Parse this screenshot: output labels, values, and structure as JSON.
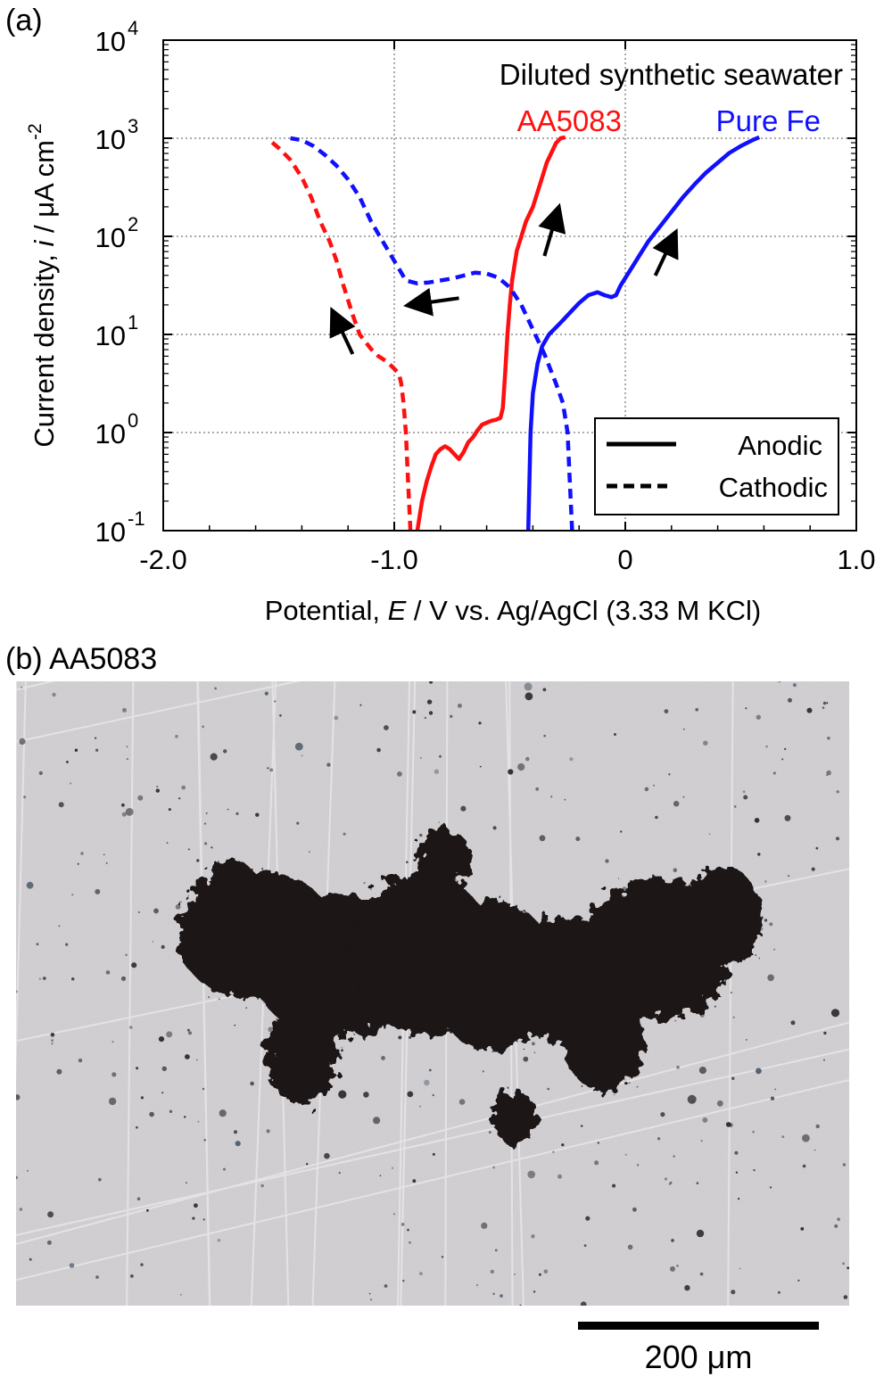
{
  "panel_a": {
    "label": "(a)"
  },
  "panel_b": {
    "label": "(b) AA5083"
  },
  "chart_data": {
    "type": "line",
    "title": "Diluted synthetic seawater",
    "xlabel": "Potential, E / V vs. Ag/AgCl (3.33 M KCl)",
    "ylabel": "Current density, i / μA cm^-2",
    "xlim": [
      -2.0,
      1.0
    ],
    "ylim_log10": [
      -1,
      4
    ],
    "yscale": "log",
    "grid": true,
    "x_ticks": [
      -2.0,
      -1.0,
      0.0,
      1.0
    ],
    "x_tick_labels": [
      "-2.0",
      "-1.0",
      "0",
      "1.0"
    ],
    "y_ticks": [
      -1,
      0,
      1,
      2,
      3,
      4
    ],
    "y_tick_mantissa": "10",
    "y_tick_exponents": [
      "-1",
      "0",
      "1",
      "2",
      "3",
      "4"
    ],
    "legend_position": "bottom-right",
    "legend": [
      {
        "label": "Anodic",
        "style": "solid"
      },
      {
        "label": "Cathodic",
        "style": "dashed"
      }
    ],
    "series_labels": [
      {
        "text": "AA5083",
        "color": "#ff1010"
      },
      {
        "text": "Pure Fe",
        "color": "#1010ff"
      }
    ],
    "series": [
      {
        "material": "AA5083",
        "branch": "Anodic",
        "color": "#ff1010",
        "style": "solid",
        "x": [
          -0.9,
          -0.88,
          -0.86,
          -0.84,
          -0.82,
          -0.8,
          -0.78,
          -0.76,
          -0.74,
          -0.72,
          -0.7,
          -0.68,
          -0.66,
          -0.64,
          -0.62,
          -0.6,
          -0.58,
          -0.56,
          -0.54,
          -0.53,
          -0.52,
          -0.51,
          -0.5,
          -0.49,
          -0.48,
          -0.47,
          -0.45,
          -0.43,
          -0.4,
          -0.38,
          -0.36,
          -0.34,
          -0.32,
          -0.3,
          -0.28,
          -0.26
        ],
        "log10_i": [
          -1.0,
          -0.7,
          -0.5,
          -0.35,
          -0.22,
          -0.17,
          -0.14,
          -0.17,
          -0.22,
          -0.27,
          -0.2,
          -0.1,
          -0.05,
          0.02,
          0.08,
          0.1,
          0.12,
          0.13,
          0.15,
          0.25,
          0.6,
          1.0,
          1.3,
          1.55,
          1.7,
          1.85,
          2.0,
          2.15,
          2.3,
          2.45,
          2.6,
          2.75,
          2.85,
          2.95,
          3.0,
          3.01
        ]
      },
      {
        "material": "AA5083",
        "branch": "Cathodic",
        "color": "#ff1010",
        "style": "dashed",
        "x": [
          -0.93,
          -0.94,
          -0.95,
          -0.96,
          -0.97,
          -0.98,
          -1.0,
          -1.03,
          -1.07,
          -1.1,
          -1.15,
          -1.18,
          -1.22,
          -1.25,
          -1.28,
          -1.32,
          -1.36,
          -1.4,
          -1.45,
          -1.5,
          -1.55
        ],
        "log10_i": [
          -1.0,
          -0.5,
          0.0,
          0.3,
          0.5,
          0.6,
          0.65,
          0.72,
          0.78,
          0.85,
          1.0,
          1.2,
          1.5,
          1.75,
          1.95,
          2.15,
          2.4,
          2.6,
          2.78,
          2.9,
          3.0
        ]
      },
      {
        "material": "Pure Fe",
        "branch": "Anodic",
        "color": "#1010ff",
        "style": "solid",
        "x": [
          -0.42,
          -0.41,
          -0.4,
          -0.38,
          -0.36,
          -0.33,
          -0.28,
          -0.24,
          -0.2,
          -0.16,
          -0.12,
          -0.09,
          -0.06,
          -0.04,
          -0.02,
          0.02,
          0.06,
          0.1,
          0.15,
          0.2,
          0.25,
          0.3,
          0.35,
          0.4,
          0.45,
          0.5,
          0.55,
          0.58
        ],
        "log10_i": [
          -1.0,
          0.0,
          0.4,
          0.7,
          0.88,
          1.0,
          1.12,
          1.22,
          1.32,
          1.4,
          1.43,
          1.4,
          1.38,
          1.4,
          1.5,
          1.65,
          1.8,
          1.95,
          2.1,
          2.25,
          2.4,
          2.53,
          2.65,
          2.75,
          2.85,
          2.92,
          2.98,
          3.01
        ]
      },
      {
        "material": "Pure Fe",
        "branch": "Cathodic",
        "color": "#1010ff",
        "style": "dashed",
        "x": [
          -0.23,
          -0.24,
          -0.25,
          -0.27,
          -0.3,
          -0.35,
          -0.4,
          -0.45,
          -0.5,
          -0.55,
          -0.6,
          -0.65,
          -0.7,
          -0.75,
          -0.8,
          -0.85,
          -0.9,
          -0.95,
          -1.0,
          -1.05,
          -1.1,
          -1.15,
          -1.2,
          -1.25,
          -1.3,
          -1.35,
          -1.4,
          -1.45
        ],
        "log10_i": [
          -1.0,
          -0.5,
          0.0,
          0.3,
          0.5,
          0.8,
          1.05,
          1.3,
          1.48,
          1.58,
          1.62,
          1.63,
          1.6,
          1.57,
          1.55,
          1.53,
          1.52,
          1.55,
          1.75,
          1.95,
          2.15,
          2.4,
          2.58,
          2.72,
          2.83,
          2.92,
          2.98,
          3.0
        ]
      }
    ],
    "sweep_arrows": [
      {
        "material": "AA5083",
        "branch": "Anodic",
        "x": [
          -0.35,
          -0.3
        ],
        "log10_i": [
          1.8,
          2.2
        ]
      },
      {
        "material": "AA5083",
        "branch": "Cathodic",
        "x": [
          -1.18,
          -1.25
        ],
        "log10_i": [
          0.8,
          1.15
        ]
      },
      {
        "material": "Pure Fe",
        "branch": "Anodic",
        "x": [
          0.13,
          0.2
        ],
        "log10_i": [
          1.6,
          1.95
        ]
      },
      {
        "material": "Pure Fe",
        "branch": "Cathodic",
        "x": [
          -0.72,
          -0.9
        ],
        "log10_i": [
          1.37,
          1.31
        ]
      }
    ]
  },
  "micrograph": {
    "scalebar_label": "200 μm",
    "background_color": "#cfcdd0",
    "pit_color": "#1a1818"
  }
}
